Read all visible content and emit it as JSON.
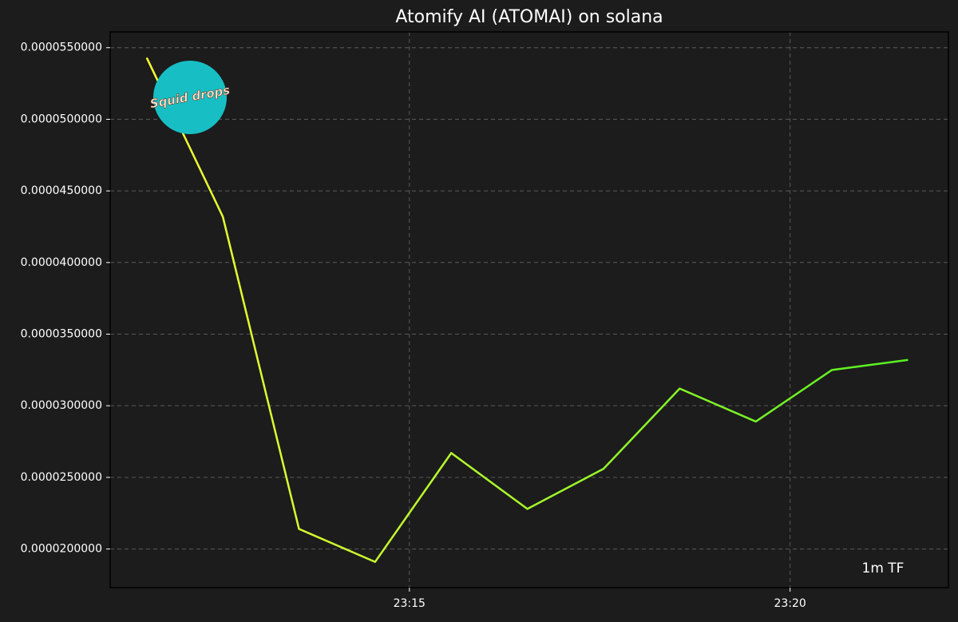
{
  "chart_data": {
    "type": "line",
    "title": "Atomify AI (ATOMAI) on solana",
    "annotation": "1m TF",
    "watermark": "Squid drops",
    "x": [
      1391.55,
      1392.55,
      1393.55,
      1394.55,
      1395.55,
      1396.55,
      1397.55,
      1398.55,
      1399.55,
      1400.55,
      1401.55
    ],
    "series": [
      {
        "color": [
          "#ffff33",
          "#4cf022"
        ],
        "values": [
          5.43e-05,
          4.32e-05,
          2.14e-05,
          1.91e-05,
          2.67e-05,
          2.28e-05,
          2.56e-05,
          3.12e-05,
          2.89e-05,
          3.25e-05,
          3.32e-05
        ]
      }
    ],
    "xlim": [
      1391.07,
      1402.08
    ],
    "xticks": [
      {
        "value": 1395,
        "label": "23:15"
      },
      {
        "value": 1400,
        "label": "23:20"
      }
    ],
    "ylim": [
      1.73e-05,
      5.61e-05
    ],
    "yticks": [
      {
        "value": 2e-05,
        "label": "0.0000200000"
      },
      {
        "value": 2.5e-05,
        "label": "0.0000250000"
      },
      {
        "value": 3e-05,
        "label": "0.0000300000"
      },
      {
        "value": 3.5e-05,
        "label": "0.0000350000"
      },
      {
        "value": 4e-05,
        "label": "0.0000400000"
      },
      {
        "value": 4.5e-05,
        "label": "0.0000450000"
      },
      {
        "value": 5e-05,
        "label": "0.0000500000"
      },
      {
        "value": 5.5e-05,
        "label": "0.0000550000"
      }
    ],
    "grid": true
  }
}
